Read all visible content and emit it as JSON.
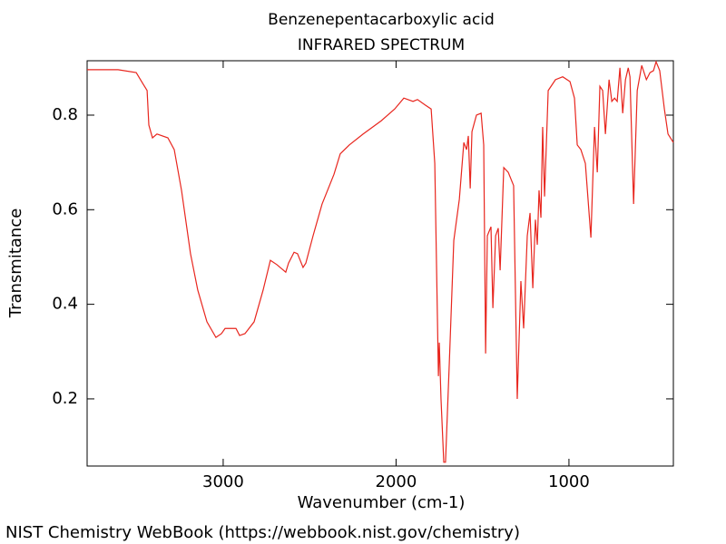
{
  "chart_data": {
    "type": "line",
    "title": "Benzenepentacarboxylic acid",
    "subtitle": "INFRARED SPECTRUM",
    "x_label": "Wavenumber (cm-1)",
    "y_label": "Transmitance",
    "footer": "NIST Chemistry WebBook (https://webbook.nist.gov/chemistry)",
    "xlim": [
      3787,
      396
    ],
    "ylim": [
      0.058,
      0.915
    ],
    "xticks": [
      3000,
      2000,
      1000
    ],
    "yticks": [
      0.2,
      0.4,
      0.6,
      0.8
    ],
    "series": [
      {
        "color": "#e8261e",
        "x": [
          3787,
          3608,
          3503,
          3462,
          3440,
          3430,
          3409,
          3383,
          3320,
          3283,
          3241,
          3189,
          3147,
          3094,
          3042,
          3010,
          2989,
          2926,
          2905,
          2874,
          2821,
          2769,
          2727,
          2690,
          2638,
          2622,
          2590,
          2570,
          2538,
          2522,
          2480,
          2428,
          2359,
          2323,
          2270,
          2191,
          2086,
          2008,
          1955,
          1902,
          1876,
          1834,
          1797,
          1776,
          1755,
          1750,
          1740,
          1724,
          1714,
          1692,
          1666,
          1634,
          1608,
          1592,
          1582,
          1571,
          1561,
          1535,
          1508,
          1493,
          1482,
          1472,
          1451,
          1440,
          1424,
          1409,
          1398,
          1377,
          1351,
          1320,
          1299,
          1278,
          1262,
          1241,
          1225,
          1209,
          1194,
          1183,
          1173,
          1162,
          1152,
          1141,
          1120,
          1078,
          1036,
          994,
          968,
          952,
          931,
          905,
          873,
          852,
          836,
          821,
          805,
          789,
          768,
          752,
          736,
          721,
          705,
          689,
          673,
          657,
          647,
          626,
          605,
          579,
          552,
          531,
          511,
          496,
          475,
          448,
          427,
          396
        ],
        "values": [
          0.896,
          0.896,
          0.89,
          0.865,
          0.852,
          0.779,
          0.752,
          0.76,
          0.752,
          0.727,
          0.641,
          0.507,
          0.43,
          0.363,
          0.33,
          0.338,
          0.349,
          0.349,
          0.334,
          0.338,
          0.363,
          0.43,
          0.493,
          0.484,
          0.468,
          0.487,
          0.51,
          0.507,
          0.478,
          0.487,
          0.545,
          0.612,
          0.675,
          0.718,
          0.737,
          0.76,
          0.788,
          0.813,
          0.836,
          0.829,
          0.833,
          0.822,
          0.813,
          0.698,
          0.248,
          0.319,
          0.2,
          0.066,
          0.066,
          0.276,
          0.535,
          0.622,
          0.742,
          0.727,
          0.756,
          0.645,
          0.765,
          0.8,
          0.804,
          0.737,
          0.296,
          0.545,
          0.564,
          0.392,
          0.545,
          0.561,
          0.472,
          0.689,
          0.679,
          0.651,
          0.2,
          0.449,
          0.349,
          0.545,
          0.593,
          0.434,
          0.579,
          0.526,
          0.641,
          0.583,
          0.775,
          0.628,
          0.852,
          0.875,
          0.881,
          0.871,
          0.836,
          0.737,
          0.727,
          0.698,
          0.541,
          0.775,
          0.679,
          0.861,
          0.852,
          0.76,
          0.875,
          0.829,
          0.836,
          0.829,
          0.9,
          0.804,
          0.875,
          0.9,
          0.881,
          0.612,
          0.852,
          0.905,
          0.875,
          0.89,
          0.894,
          0.913,
          0.894,
          0.813,
          0.76,
          0.742
        ]
      }
    ]
  }
}
